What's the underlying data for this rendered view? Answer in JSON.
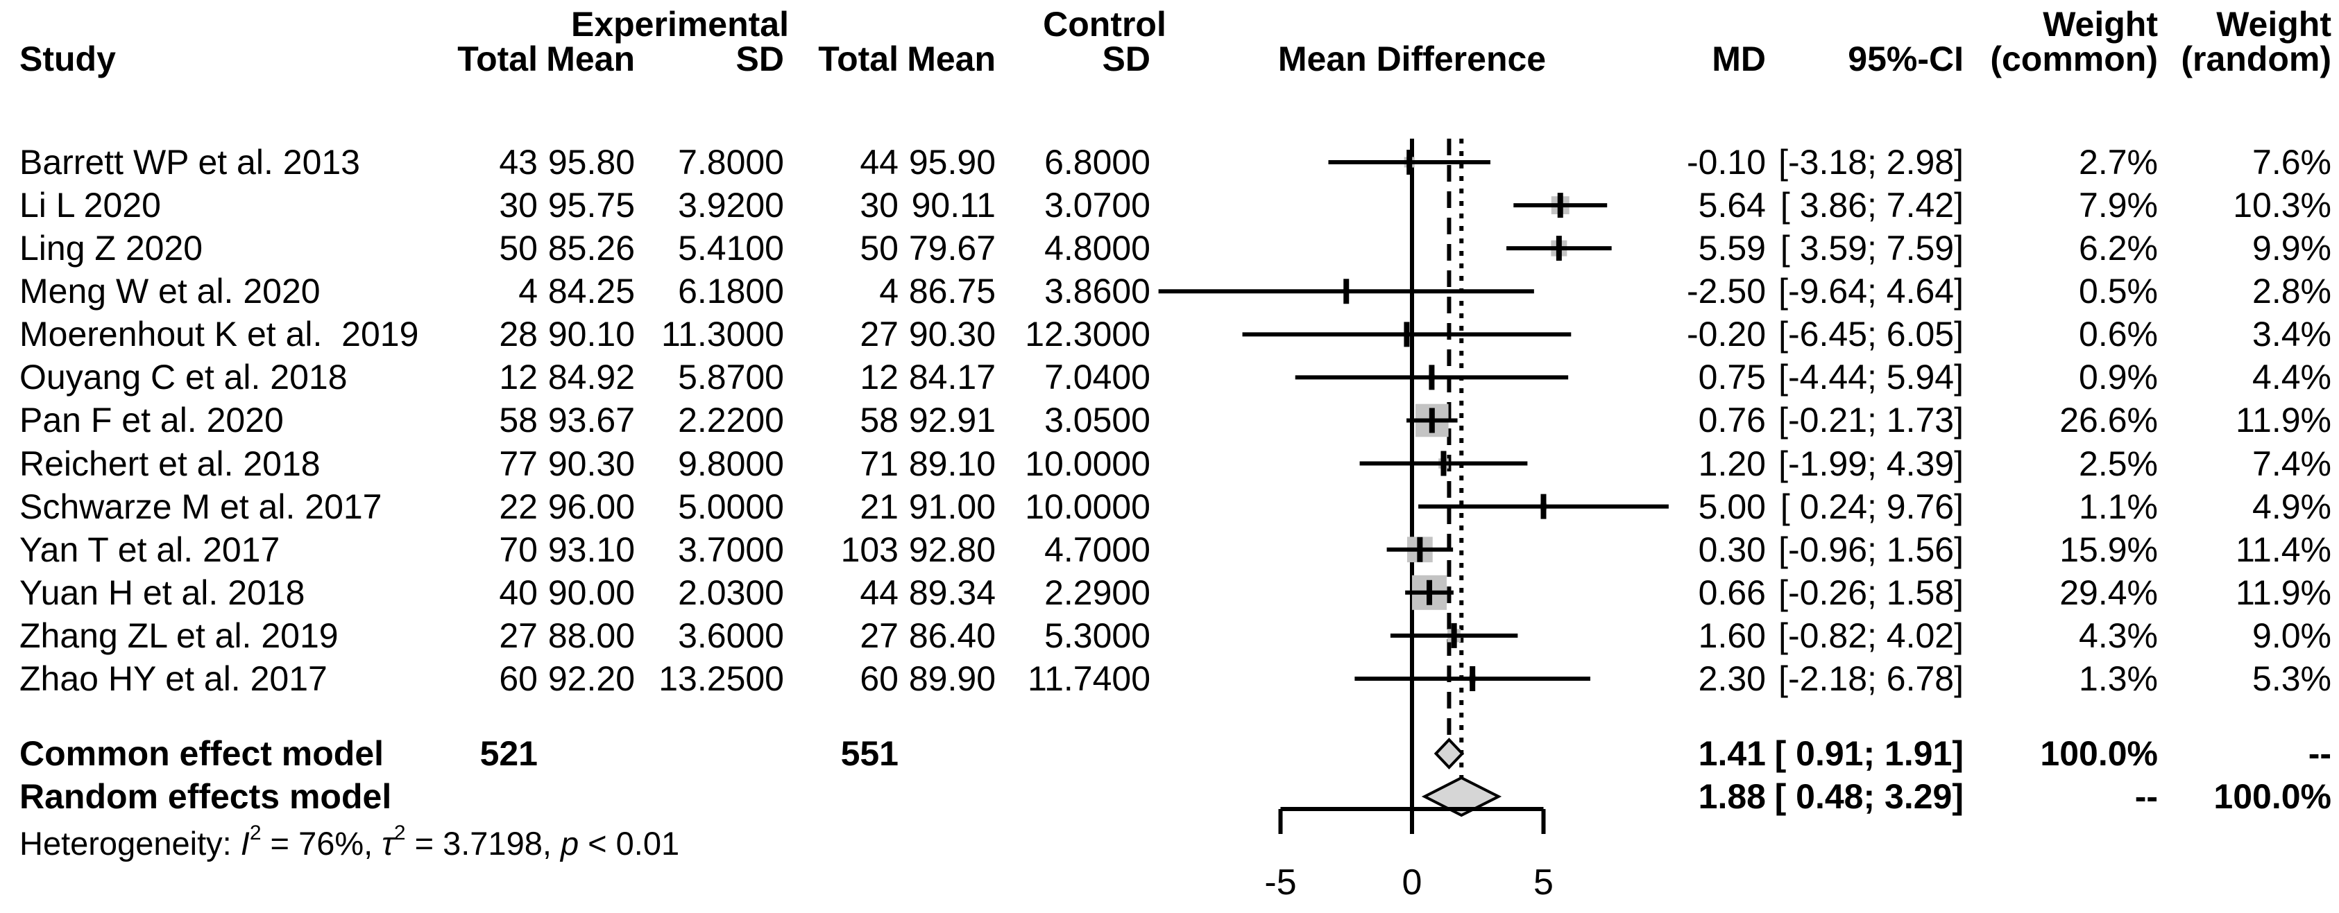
{
  "header": {
    "group_experimental": "Experimental",
    "group_control": "Control",
    "study": "Study",
    "total_exp": "Total",
    "mean_exp": "Mean",
    "sd_exp": "SD",
    "total_ctl": "Total",
    "mean_ctl": "Mean",
    "sd_ctl": "SD",
    "plot_title": "Mean Difference",
    "md": "MD",
    "ci": "95%-CI",
    "weight_label_1": "Weight",
    "weight_label_2": "Weight",
    "weight_common": "(common)",
    "weight_random": "(random)"
  },
  "chart_data": {
    "type": "forest",
    "title": "Mean Difference",
    "effect_measure": "MD",
    "xlim": [
      -9.9,
      9.9
    ],
    "grid": false,
    "zero_line": 0,
    "common_effect_estimate": 1.41,
    "random_effects_estimate": 1.88,
    "axis": {
      "values": [
        -5,
        0,
        5
      ],
      "labels": [
        "-5",
        "0",
        "5"
      ]
    },
    "studies": [
      {
        "name": "Barrett WP et al. 2013",
        "total_exp": "43",
        "mean_exp": "95.80",
        "sd_exp": "7.8000",
        "total_ctl": "44",
        "mean_ctl": "95.90",
        "sd_ctl": "6.8000",
        "md": -0.1,
        "lower": -3.18,
        "upper": 2.98,
        "md_label": "-0.10",
        "ci_label": "[-3.18; 2.98]",
        "weight_common": 2.7,
        "weight_random": 7.6,
        "weight_common_label": "2.7%",
        "weight_random_label": "7.6%"
      },
      {
        "name": "Li L 2020",
        "total_exp": "30",
        "mean_exp": "95.75",
        "sd_exp": "3.9200",
        "total_ctl": "30",
        "mean_ctl": "90.11",
        "sd_ctl": "3.0700",
        "md": 5.64,
        "lower": 3.86,
        "upper": 7.42,
        "md_label": "5.64",
        "ci_label": "[ 3.86; 7.42]",
        "weight_common": 7.9,
        "weight_random": 10.3,
        "weight_common_label": "7.9%",
        "weight_random_label": "10.3%"
      },
      {
        "name": "Ling Z 2020",
        "total_exp": "50",
        "mean_exp": "85.26",
        "sd_exp": "5.4100",
        "total_ctl": "50",
        "mean_ctl": "79.67",
        "sd_ctl": "4.8000",
        "md": 5.59,
        "lower": 3.59,
        "upper": 7.59,
        "md_label": "5.59",
        "ci_label": "[ 3.59; 7.59]",
        "weight_common": 6.2,
        "weight_random": 9.9,
        "weight_common_label": "6.2%",
        "weight_random_label": "9.9%"
      },
      {
        "name": "Meng W et al. 2020",
        "total_exp": "4",
        "mean_exp": "84.25",
        "sd_exp": "6.1800",
        "total_ctl": "4",
        "mean_ctl": "86.75",
        "sd_ctl": "3.8600",
        "md": -2.5,
        "lower": -9.64,
        "upper": 4.64,
        "md_label": "-2.50",
        "ci_label": "[-9.64; 4.64]",
        "weight_common": 0.5,
        "weight_random": 2.8,
        "weight_common_label": "0.5%",
        "weight_random_label": "2.8%"
      },
      {
        "name": "Moerenhout K et al.  2019",
        "total_exp": "28",
        "mean_exp": "90.10",
        "sd_exp": "11.3000",
        "total_ctl": "27",
        "mean_ctl": "90.30",
        "sd_ctl": "12.3000",
        "md": -0.2,
        "lower": -6.45,
        "upper": 6.05,
        "md_label": "-0.20",
        "ci_label": "[-6.45; 6.05]",
        "weight_common": 0.6,
        "weight_random": 3.4,
        "weight_common_label": "0.6%",
        "weight_random_label": "3.4%"
      },
      {
        "name": "Ouyang C et al. 2018",
        "total_exp": "12",
        "mean_exp": "84.92",
        "sd_exp": "5.8700",
        "total_ctl": "12",
        "mean_ctl": "84.17",
        "sd_ctl": "7.0400",
        "md": 0.75,
        "lower": -4.44,
        "upper": 5.94,
        "md_label": "0.75",
        "ci_label": "[-4.44; 5.94]",
        "weight_common": 0.9,
        "weight_random": 4.4,
        "weight_common_label": "0.9%",
        "weight_random_label": "4.4%"
      },
      {
        "name": "Pan F et al. 2020",
        "total_exp": "58",
        "mean_exp": "93.67",
        "sd_exp": "2.2200",
        "total_ctl": "58",
        "mean_ctl": "92.91",
        "sd_ctl": "3.0500",
        "md": 0.76,
        "lower": -0.21,
        "upper": 1.73,
        "md_label": "0.76",
        "ci_label": "[-0.21; 1.73]",
        "weight_common": 26.6,
        "weight_random": 11.9,
        "weight_common_label": "26.6%",
        "weight_random_label": "11.9%"
      },
      {
        "name": "Reichert et al. 2018",
        "total_exp": "77",
        "mean_exp": "90.30",
        "sd_exp": "9.8000",
        "total_ctl": "71",
        "mean_ctl": "89.10",
        "sd_ctl": "10.0000",
        "md": 1.2,
        "lower": -1.99,
        "upper": 4.39,
        "md_label": "1.20",
        "ci_label": "[-1.99; 4.39]",
        "weight_common": 2.5,
        "weight_random": 7.4,
        "weight_common_label": "2.5%",
        "weight_random_label": "7.4%"
      },
      {
        "name": "Schwarze M et al. 2017",
        "total_exp": "22",
        "mean_exp": "96.00",
        "sd_exp": "5.0000",
        "total_ctl": "21",
        "mean_ctl": "91.00",
        "sd_ctl": "10.0000",
        "md": 5.0,
        "lower": 0.24,
        "upper": 9.76,
        "md_label": "5.00",
        "ci_label": "[ 0.24; 9.76]",
        "weight_common": 1.1,
        "weight_random": 4.9,
        "weight_common_label": "1.1%",
        "weight_random_label": "4.9%"
      },
      {
        "name": "Yan T et al. 2017",
        "total_exp": "70",
        "mean_exp": "93.10",
        "sd_exp": "3.7000",
        "total_ctl": "103",
        "mean_ctl": "92.80",
        "sd_ctl": "4.7000",
        "md": 0.3,
        "lower": -0.96,
        "upper": 1.56,
        "md_label": "0.30",
        "ci_label": "[-0.96; 1.56]",
        "weight_common": 15.9,
        "weight_random": 11.4,
        "weight_common_label": "15.9%",
        "weight_random_label": "11.4%"
      },
      {
        "name": "Yuan H et al. 2018",
        "total_exp": "40",
        "mean_exp": "90.00",
        "sd_exp": "2.0300",
        "total_ctl": "44",
        "mean_ctl": "89.34",
        "sd_ctl": "2.2900",
        "md": 0.66,
        "lower": -0.26,
        "upper": 1.58,
        "md_label": "0.66",
        "ci_label": "[-0.26; 1.58]",
        "weight_common": 29.4,
        "weight_random": 11.9,
        "weight_common_label": "29.4%",
        "weight_random_label": "11.9%"
      },
      {
        "name": "Zhang ZL et al. 2019",
        "total_exp": "27",
        "mean_exp": "88.00",
        "sd_exp": "3.6000",
        "total_ctl": "27",
        "mean_ctl": "86.40",
        "sd_ctl": "5.3000",
        "md": 1.6,
        "lower": -0.82,
        "upper": 4.02,
        "md_label": "1.60",
        "ci_label": "[-0.82; 4.02]",
        "weight_common": 4.3,
        "weight_random": 9.0,
        "weight_common_label": "4.3%",
        "weight_random_label": "9.0%"
      },
      {
        "name": "Zhao HY et al. 2017",
        "total_exp": "60",
        "mean_exp": "92.20",
        "sd_exp": "13.2500",
        "total_ctl": "60",
        "mean_ctl": "89.90",
        "sd_ctl": "11.7400",
        "md": 2.3,
        "lower": -2.18,
        "upper": 6.78,
        "md_label": "2.30",
        "ci_label": "[-2.18; 6.78]",
        "weight_common": 1.3,
        "weight_random": 5.3,
        "weight_common_label": "1.3%",
        "weight_random_label": "5.3%"
      }
    ],
    "summaries": [
      {
        "name": "Common effect model",
        "total_exp": "521",
        "total_ctl": "551",
        "md": 1.41,
        "lower": 0.91,
        "upper": 1.91,
        "md_label": "1.41",
        "ci_label": "[ 0.91; 1.91]",
        "weight_common_label": "100.0%",
        "weight_random_label": "--",
        "line_style": "longdash"
      },
      {
        "name": "Random effects model",
        "total_exp": "",
        "total_ctl": "",
        "md": 1.88,
        "lower": 0.48,
        "upper": 3.29,
        "md_label": "1.88",
        "ci_label": "[ 0.48; 3.29]",
        "weight_common_label": "--",
        "weight_random_label": "100.0%",
        "line_style": "dotted"
      }
    ],
    "heterogeneity": [
      {
        "text": "Heterogeneity: "
      },
      {
        "text": "I",
        "italic": true
      },
      {
        "text": "2",
        "sup": true
      },
      {
        "text": " = 76%, "
      },
      {
        "text": "τ",
        "italic": true
      },
      {
        "text": "2",
        "sup": true
      },
      {
        "text": " = 3.7198, "
      },
      {
        "text": "p",
        "italic": true
      },
      {
        "text": " < 0.01"
      }
    ],
    "colors": {
      "square_fill": "#c3c3c3",
      "diamond_fill": "#d6d6d6",
      "line": "#000000"
    }
  }
}
